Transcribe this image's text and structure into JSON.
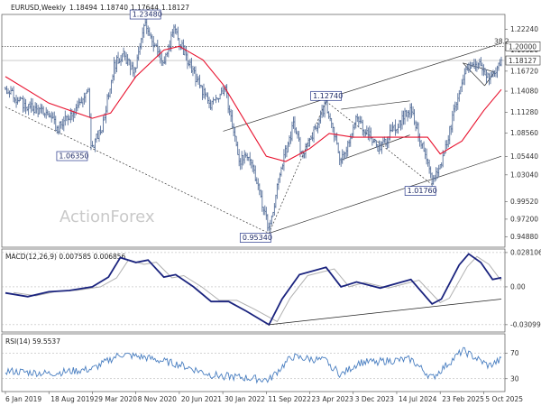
{
  "chart_data": {
    "type": "candlestick",
    "header": {
      "symbol": "EURUSD",
      "timeframe": "Weekly",
      "open": "1.18494",
      "high": "1.18740",
      "low": "1.17644",
      "close": "1.18127"
    },
    "watermark": "ActionForex",
    "x_tick_labels": [
      "6 Jan 2019",
      "18 Aug 2019",
      "29 Mar 2020",
      "8 Nov 2020",
      "20 Jun 2021",
      "30 Jan 2022",
      "11 Sep 2022",
      "23 Apr 2023",
      "3 Dec 2023",
      "14 Jul 2024",
      "23 Feb 2025",
      "5 Oct 2025"
    ],
    "price_panel": {
      "ylim": [
        0.935,
        1.242
      ],
      "y_ticks": [
        0.9488,
        0.972,
        0.9952,
        1.0304,
        1.0544,
        1.0856,
        1.1128,
        1.1408,
        1.1672,
        1.1952,
        1.2224
      ],
      "y_tick_labels": [
        "0.94880",
        "0.97200",
        "0.99520",
        "1.03040",
        "1.05440",
        "1.08560",
        "1.11280",
        "1.14080",
        "1.16720",
        "1.19520",
        "1.22240"
      ],
      "current_price": 1.18127,
      "current_price_label": "1.18127",
      "level_line": 1.2,
      "level_label": "1.20000",
      "fib_label": "38.2",
      "ma_color": "#e8112d",
      "price_color": "#57709a",
      "annotations": [
        {
          "label": "1.23480",
          "date": "2020-12-27",
          "price": 1.2348
        },
        {
          "label": "1.06350",
          "date": "2020-03-22",
          "price": 1.0635
        },
        {
          "label": "0.95340",
          "date": "2022-09-25",
          "price": 0.9534
        },
        {
          "label": "1.12740",
          "date": "2023-07-16",
          "price": 1.1274
        },
        {
          "label": "1.01760",
          "date": "2025-01-12",
          "price": 1.0176
        }
      ],
      "key_points": [
        {
          "date": "2019-01-06",
          "price": 1.145
        },
        {
          "date": "2019-04-15",
          "price": 1.122
        },
        {
          "date": "2019-08-18",
          "price": 1.11
        },
        {
          "date": "2019-10-01",
          "price": 1.09
        },
        {
          "date": "2019-12-20",
          "price": 1.115
        },
        {
          "date": "2020-03-10",
          "price": 1.14
        },
        {
          "date": "2020-03-22",
          "price": 1.066
        },
        {
          "date": "2020-05-15",
          "price": 1.09
        },
        {
          "date": "2020-07-20",
          "price": 1.175
        },
        {
          "date": "2020-09-01",
          "price": 1.19
        },
        {
          "date": "2020-11-01",
          "price": 1.165
        },
        {
          "date": "2020-12-27",
          "price": 1.232
        },
        {
          "date": "2021-03-28",
          "price": 1.175
        },
        {
          "date": "2021-05-25",
          "price": 1.222
        },
        {
          "date": "2021-08-20",
          "price": 1.17
        },
        {
          "date": "2021-11-25",
          "price": 1.122
        },
        {
          "date": "2022-02-10",
          "price": 1.145
        },
        {
          "date": "2022-04-25",
          "price": 1.05
        },
        {
          "date": "2022-06-25",
          "price": 1.052
        },
        {
          "date": "2022-09-25",
          "price": 0.958
        },
        {
          "date": "2022-12-01",
          "price": 1.045
        },
        {
          "date": "2023-02-01",
          "price": 1.098
        },
        {
          "date": "2023-03-15",
          "price": 1.055
        },
        {
          "date": "2023-07-16",
          "price": 1.124
        },
        {
          "date": "2023-10-01",
          "price": 1.048
        },
        {
          "date": "2023-12-20",
          "price": 1.105
        },
        {
          "date": "2024-04-15",
          "price": 1.065
        },
        {
          "date": "2024-09-25",
          "price": 1.12
        },
        {
          "date": "2025-01-12",
          "price": 1.022
        },
        {
          "date": "2025-03-01",
          "price": 1.045
        },
        {
          "date": "2025-06-20",
          "price": 1.16
        },
        {
          "date": "2025-07-20",
          "price": 1.172
        },
        {
          "date": "2025-09-10",
          "price": 1.178
        },
        {
          "date": "2025-11-01",
          "price": 1.155
        },
        {
          "date": "2026-01-04",
          "price": 1.181
        }
      ],
      "ma_points": [
        {
          "date": "2019-01-06",
          "price": 1.16
        },
        {
          "date": "2019-08-18",
          "price": 1.125
        },
        {
          "date": "2020-03-29",
          "price": 1.105
        },
        {
          "date": "2020-07-01",
          "price": 1.112
        },
        {
          "date": "2020-11-08",
          "price": 1.16
        },
        {
          "date": "2021-04-01",
          "price": 1.195
        },
        {
          "date": "2021-06-20",
          "price": 1.2
        },
        {
          "date": "2021-10-20",
          "price": 1.182
        },
        {
          "date": "2022-01-30",
          "price": 1.15
        },
        {
          "date": "2022-06-20",
          "price": 1.09
        },
        {
          "date": "2022-09-11",
          "price": 1.055
        },
        {
          "date": "2022-12-20",
          "price": 1.048
        },
        {
          "date": "2023-04-23",
          "price": 1.065
        },
        {
          "date": "2023-08-01",
          "price": 1.085
        },
        {
          "date": "2023-12-03",
          "price": 1.08
        },
        {
          "date": "2024-07-14",
          "price": 1.08
        },
        {
          "date": "2024-12-20",
          "price": 1.08
        },
        {
          "date": "2025-02-23",
          "price": 1.058
        },
        {
          "date": "2025-06-15",
          "price": 1.075
        },
        {
          "date": "2025-10-05",
          "price": 1.115
        },
        {
          "date": "2026-01-04",
          "price": 1.143
        }
      ],
      "trendlines": [
        {
          "style": "solid",
          "from": {
            "date": "2022-02-01",
            "price": 1.088
          },
          "to": {
            "date": "2026-01-04",
            "price": 1.204
          }
        },
        {
          "style": "solid",
          "from": {
            "date": "2022-09-25",
            "price": 0.9534
          },
          "to": {
            "date": "2026-01-04",
            "price": 1.055
          }
        },
        {
          "style": "dashed",
          "from": {
            "date": "2019-01-06",
            "price": 1.12
          },
          "to": {
            "date": "2022-09-25",
            "price": 0.9534
          }
        },
        {
          "style": "dashed",
          "from": {
            "date": "2022-09-25",
            "price": 0.9534
          },
          "to": {
            "date": "2023-07-16",
            "price": 1.1274
          }
        },
        {
          "style": "dashed",
          "from": {
            "date": "2023-07-16",
            "price": 1.1274
          },
          "to": {
            "date": "2025-01-12",
            "price": 1.0176
          }
        },
        {
          "style": "solid",
          "from": {
            "date": "2023-10-01",
            "price": 1.117
          },
          "to": {
            "date": "2024-09-20",
            "price": 1.128
          }
        },
        {
          "style": "solid",
          "from": {
            "date": "2023-10-01",
            "price": 1.05
          },
          "to": {
            "date": "2024-09-20",
            "price": 1.083
          }
        },
        {
          "style": "solid",
          "from": {
            "date": "2025-06-20",
            "price": 1.178
          },
          "to": {
            "date": "2025-11-30",
            "price": 1.166
          }
        },
        {
          "style": "solid",
          "from": {
            "date": "2025-06-20",
            "price": 1.178
          },
          "to": {
            "date": "2025-10-10",
            "price": 1.148
          }
        },
        {
          "style": "solid",
          "from": {
            "date": "2025-10-10",
            "price": 1.148
          },
          "to": {
            "date": "2025-11-30",
            "price": 1.166
          }
        }
      ]
    },
    "macd_panel": {
      "label": "MACD(12,26,9) 0.007585 0.006856",
      "ylim": [
        -0.037,
        0.031
      ],
      "y_ticks": [
        0.028106,
        0,
        -0.03099
      ],
      "y_tick_labels": [
        "0.028106",
        "0.00",
        "-0.03099"
      ],
      "current_value": 0.007585,
      "macd_color": "#1a237e",
      "signal_color": "#b0b0b0",
      "key_points": [
        {
          "date": "2019-01-06",
          "value": -0.005
        },
        {
          "date": "2019-05-01",
          "value": -0.008
        },
        {
          "date": "2019-08-18",
          "value": -0.004
        },
        {
          "date": "2019-12-01",
          "value": -0.003
        },
        {
          "date": "2020-03-29",
          "value": 0.0
        },
        {
          "date": "2020-06-20",
          "value": 0.008
        },
        {
          "date": "2020-08-20",
          "value": 0.024
        },
        {
          "date": "2020-11-08",
          "value": 0.02
        },
        {
          "date": "2021-01-10",
          "value": 0.022
        },
        {
          "date": "2021-04-01",
          "value": 0.008
        },
        {
          "date": "2021-06-01",
          "value": 0.01
        },
        {
          "date": "2021-09-01",
          "value": 0.0
        },
        {
          "date": "2021-12-01",
          "value": -0.012
        },
        {
          "date": "2022-03-01",
          "value": -0.012
        },
        {
          "date": "2022-06-01",
          "value": -0.02
        },
        {
          "date": "2022-09-25",
          "value": -0.031
        },
        {
          "date": "2022-12-01",
          "value": -0.01
        },
        {
          "date": "2023-03-01",
          "value": 0.01
        },
        {
          "date": "2023-07-16",
          "value": 0.016
        },
        {
          "date": "2023-10-01",
          "value": 0.0
        },
        {
          "date": "2023-12-20",
          "value": 0.004
        },
        {
          "date": "2024-04-20",
          "value": -0.001
        },
        {
          "date": "2024-09-25",
          "value": 0.006
        },
        {
          "date": "2025-01-12",
          "value": -0.014
        },
        {
          "date": "2025-03-01",
          "value": -0.01
        },
        {
          "date": "2025-06-01",
          "value": 0.018
        },
        {
          "date": "2025-07-20",
          "value": 0.027
        },
        {
          "date": "2025-09-20",
          "value": 0.02
        },
        {
          "date": "2025-11-20",
          "value": 0.006
        },
        {
          "date": "2026-01-04",
          "value": 0.0076
        }
      ],
      "trendline": {
        "from": {
          "date": "2022-09-25",
          "value": -0.031
        },
        "to": {
          "date": "2026-01-04",
          "value": -0.01
        }
      }
    },
    "rsi_panel": {
      "label": "RSI(14) 59.5537",
      "ylim": [
        10,
        100
      ],
      "y_ticks": [
        70,
        30
      ],
      "y_tick_labels": [
        "70",
        "30"
      ],
      "current_value": 59.5537,
      "rsi_color": "#4a7fc1",
      "key_points": [
        {
          "date": "2019-01-06",
          "value": 42
        },
        {
          "date": "2019-08-18",
          "value": 38
        },
        {
          "date": "2020-03-29",
          "value": 45
        },
        {
          "date": "2020-08-20",
          "value": 68
        },
        {
          "date": "2020-12-27",
          "value": 63
        },
        {
          "date": "2021-06-20",
          "value": 52
        },
        {
          "date": "2021-12-01",
          "value": 36
        },
        {
          "date": "2022-09-25",
          "value": 28
        },
        {
          "date": "2023-01-20",
          "value": 64
        },
        {
          "date": "2023-07-16",
          "value": 58
        },
        {
          "date": "2023-10-01",
          "value": 36
        },
        {
          "date": "2024-01-01",
          "value": 55
        },
        {
          "date": "2024-09-25",
          "value": 60
        },
        {
          "date": "2025-01-12",
          "value": 31
        },
        {
          "date": "2025-06-20",
          "value": 74
        },
        {
          "date": "2025-11-01",
          "value": 50
        },
        {
          "date": "2026-01-04",
          "value": 59.6
        }
      ]
    }
  }
}
